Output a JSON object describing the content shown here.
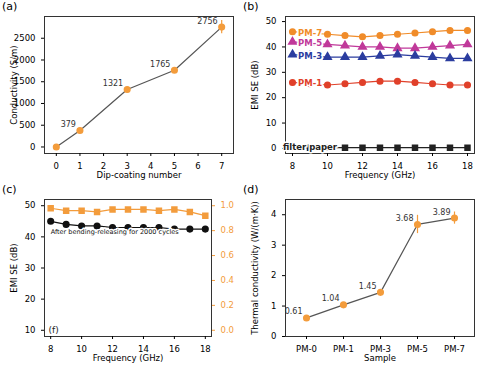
{
  "chart_data": [
    {
      "type": "line",
      "title": "(a)",
      "x": [
        0,
        1,
        3,
        5,
        7
      ],
      "values": [
        0,
        379,
        1321,
        1765,
        2756
      ],
      "value_labels": [
        null,
        "379",
        "1321",
        "1765",
        "2756"
      ],
      "errors": [
        0,
        15,
        40,
        60,
        150
      ],
      "xlabel": "Dip-coating number",
      "ylabel": "Conductivity (S/m)",
      "xlim": [
        -0.5,
        7.5
      ],
      "xticks": [
        0,
        1,
        2,
        3,
        4,
        5,
        6,
        7
      ],
      "ylim": [
        -150,
        3000
      ],
      "yticks": [
        0,
        500,
        1000,
        1500,
        2000,
        2500
      ],
      "color": "#f39c3c",
      "marker": "circle",
      "data_labels": true
    },
    {
      "type": "line",
      "title": "(b)",
      "x": [
        8,
        9,
        10,
        11,
        12,
        13,
        14,
        15,
        16,
        17,
        18
      ],
      "series": [
        {
          "name": "PM-7",
          "color": "#f08c2a",
          "marker": "circle",
          "values": [
            46,
            45.5,
            45,
            44.5,
            44,
            44.5,
            45,
            45.5,
            46,
            46.5,
            46.5
          ]
        },
        {
          "name": "PM-5",
          "color": "#c0399a",
          "marker": "triangle",
          "values": [
            42,
            41.5,
            41,
            40.5,
            40,
            40,
            39.5,
            39.5,
            40,
            40.5,
            41
          ]
        },
        {
          "name": "PM-3",
          "color": "#2b3d9f",
          "marker": "triangle",
          "values": [
            37,
            36.5,
            36,
            36,
            36,
            36.5,
            37,
            36.5,
            36,
            35.5,
            35.5
          ]
        },
        {
          "name": "PM-1",
          "color": "#e0402a",
          "marker": "circle",
          "values": [
            26,
            25.5,
            25,
            25.5,
            26,
            26.5,
            26.5,
            26,
            25.5,
            25,
            25
          ]
        },
        {
          "name": "filter paper",
          "color": "#222222",
          "marker": "square",
          "values": [
            0.3,
            0.3,
            0.3,
            0.3,
            0.3,
            0.3,
            0.3,
            0.3,
            0.3,
            0.3,
            0.3
          ]
        }
      ],
      "xlabel": "Frequency (GHz)",
      "ylabel": "EMI SE (dB)",
      "xlim": [
        7.6,
        18.4
      ],
      "xticks": [
        8,
        10,
        12,
        14,
        16,
        18
      ],
      "ylim": [
        -2,
        52
      ],
      "yticks": [
        0,
        10,
        20,
        30,
        40,
        50
      ]
    },
    {
      "type": "line",
      "title": "(c)",
      "annotations": [
        "(f)"
      ],
      "x": [
        8,
        9,
        10,
        11,
        12,
        13,
        14,
        15,
        16,
        17,
        18
      ],
      "series": [
        {
          "name": "After bending-releasing for 2000 cycles",
          "color": "#111111",
          "marker": "circle",
          "values": [
            45,
            44,
            43.5,
            43.5,
            43,
            43,
            43,
            43,
            42.5,
            42.5,
            42.5
          ]
        },
        {
          "color": "#f39c3c",
          "marker": "square",
          "axis": "y2",
          "values": [
            0.98,
            0.96,
            0.96,
            0.95,
            0.97,
            0.97,
            0.97,
            0.96,
            0.97,
            0.95,
            0.92
          ]
        }
      ],
      "xlabel": "Frequency (GHz)",
      "ylabel": "EMI SE (dB)",
      "xlim": [
        7.6,
        18.4
      ],
      "xticks": [
        8,
        10,
        12,
        14,
        16,
        18
      ],
      "ylim": [
        8,
        52
      ],
      "yticks": [
        10,
        20,
        30,
        40,
        50
      ],
      "y2lim": [
        -0.05,
        1.05
      ],
      "y2ticks": [
        {
          "value": 0,
          "label": "0.0"
        },
        0.2,
        0.4,
        0.6,
        0.8,
        {
          "value": 1,
          "label": "1.0"
        }
      ]
    },
    {
      "type": "line",
      "title": "(d)",
      "categories": [
        "PM-0",
        "PM-1",
        "PM-3",
        "PM-5",
        "PM-7"
      ],
      "values": [
        0.61,
        1.04,
        1.45,
        3.68,
        3.89
      ],
      "errors": [
        0.04,
        0.05,
        0.08,
        0.3,
        0.2
      ],
      "xlabel": "Sample",
      "ylabel": "Thermal conductivity (W/(m·K))",
      "ylim": [
        0,
        4.5
      ],
      "yticks": [
        0,
        1,
        2,
        3,
        4
      ],
      "color": "#f39c3c",
      "marker": "circle",
      "data_labels": true
    }
  ]
}
